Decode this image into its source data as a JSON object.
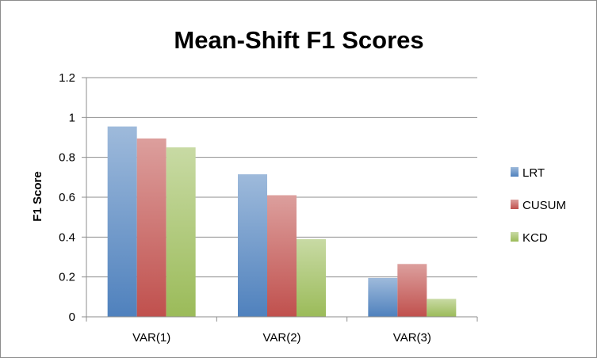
{
  "chart_data": {
    "type": "bar",
    "title": "Mean-Shift F1 Scores",
    "xlabel": "",
    "ylabel": "F1 Score",
    "categories": [
      "VAR(1)",
      "VAR(2)",
      "VAR(3)"
    ],
    "ylim": [
      0,
      1.2
    ],
    "yticks": [
      "0",
      "0.2",
      "0.4",
      "0.6",
      "0.8",
      "1",
      "1.2"
    ],
    "grid": true,
    "legend_position": "right",
    "series": [
      {
        "name": "LRT",
        "values": [
          0.955,
          0.715,
          0.195
        ],
        "color": "#4f81bd"
      },
      {
        "name": "CUSUM",
        "values": [
          0.895,
          0.61,
          0.265
        ],
        "color": "#c0504d"
      },
      {
        "name": "KCD",
        "values": [
          0.85,
          0.39,
          0.09
        ],
        "color": "#9bbb59"
      }
    ]
  }
}
